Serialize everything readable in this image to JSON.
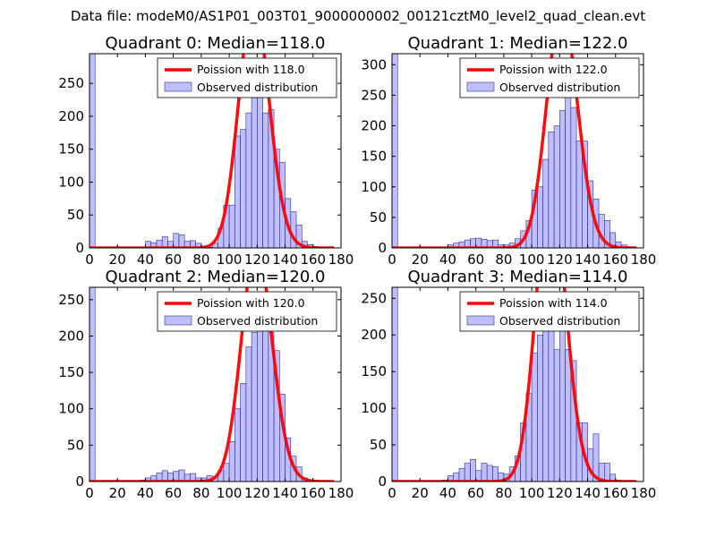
{
  "figure_title": "Data file: modeM0/AS1P01_003T01_9000000002_00121cztM0_level2_quad_clean.evt",
  "colors": {
    "poisson": "#ff0000",
    "bars": "#7f7fff",
    "bar_edge": "#2f2f8f"
  },
  "chart_data": [
    {
      "type": "bar+line",
      "title": "Quadrant 0: Median=118.0",
      "median": 118.0,
      "xlim": [
        0,
        180
      ],
      "ylim": [
        0,
        295
      ],
      "xticks": [
        0,
        20,
        40,
        60,
        80,
        100,
        120,
        140,
        160,
        180
      ],
      "yticks": [
        0,
        50,
        100,
        150,
        200,
        250
      ],
      "legend": {
        "position": "upper right",
        "entries": [
          "Poission with 118.0",
          "Observed distribution"
        ]
      },
      "bin_width": 4,
      "bins": [
        [
          0,
          295
        ],
        [
          40,
          10
        ],
        [
          44,
          8
        ],
        [
          48,
          12
        ],
        [
          52,
          17
        ],
        [
          56,
          10
        ],
        [
          60,
          22
        ],
        [
          64,
          20
        ],
        [
          68,
          10
        ],
        [
          72,
          11
        ],
        [
          76,
          7
        ],
        [
          80,
          3
        ],
        [
          84,
          1
        ],
        [
          88,
          7
        ],
        [
          92,
          30
        ],
        [
          96,
          65
        ],
        [
          100,
          65
        ],
        [
          104,
          170
        ],
        [
          108,
          180
        ],
        [
          112,
          205
        ],
        [
          116,
          245
        ],
        [
          120,
          250
        ],
        [
          124,
          205
        ],
        [
          128,
          210
        ],
        [
          132,
          150
        ],
        [
          136,
          130
        ],
        [
          140,
          75
        ],
        [
          144,
          55
        ],
        [
          148,
          35
        ],
        [
          152,
          10
        ],
        [
          156,
          5
        ],
        [
          160,
          2
        ]
      ]
    },
    {
      "type": "bar+line",
      "title": "Quadrant 1: Median=122.0",
      "median": 122.0,
      "xlim": [
        0,
        180
      ],
      "ylim": [
        0,
        318
      ],
      "xticks": [
        0,
        20,
        40,
        60,
        80,
        100,
        120,
        140,
        160,
        180
      ],
      "yticks": [
        0,
        50,
        100,
        150,
        200,
        250,
        300
      ],
      "legend": {
        "position": "upper right",
        "entries": [
          "Poission with 122.0",
          "Observed distribution"
        ]
      },
      "bin_width": 4,
      "bins": [
        [
          0,
          318
        ],
        [
          40,
          5
        ],
        [
          44,
          8
        ],
        [
          48,
          10
        ],
        [
          52,
          13
        ],
        [
          56,
          15
        ],
        [
          60,
          16
        ],
        [
          64,
          14
        ],
        [
          68,
          12
        ],
        [
          72,
          13
        ],
        [
          76,
          5
        ],
        [
          80,
          5
        ],
        [
          84,
          8
        ],
        [
          88,
          15
        ],
        [
          92,
          28
        ],
        [
          96,
          45
        ],
        [
          100,
          95
        ],
        [
          104,
          100
        ],
        [
          108,
          145
        ],
        [
          112,
          190
        ],
        [
          116,
          200
        ],
        [
          120,
          225
        ],
        [
          124,
          300
        ],
        [
          128,
          230
        ],
        [
          132,
          175
        ],
        [
          136,
          175
        ],
        [
          140,
          110
        ],
        [
          144,
          80
        ],
        [
          148,
          55
        ],
        [
          152,
          45
        ],
        [
          156,
          25
        ],
        [
          160,
          10
        ],
        [
          164,
          5
        ],
        [
          168,
          2
        ]
      ]
    },
    {
      "type": "bar+line",
      "title": "Quadrant 2: Median=120.0",
      "median": 120.0,
      "xlim": [
        0,
        180
      ],
      "ylim": [
        0,
        267
      ],
      "xticks": [
        0,
        20,
        40,
        60,
        80,
        100,
        120,
        140,
        160,
        180
      ],
      "yticks": [
        0,
        50,
        100,
        150,
        200,
        250
      ],
      "legend": {
        "position": "upper right",
        "entries": [
          "Poission with 120.0",
          "Observed distribution"
        ]
      },
      "bin_width": 4,
      "bins": [
        [
          0,
          267
        ],
        [
          36,
          2
        ],
        [
          40,
          5
        ],
        [
          44,
          8
        ],
        [
          48,
          12
        ],
        [
          52,
          15
        ],
        [
          56,
          12
        ],
        [
          60,
          14
        ],
        [
          64,
          16
        ],
        [
          68,
          10
        ],
        [
          72,
          11
        ],
        [
          76,
          5
        ],
        [
          80,
          5
        ],
        [
          84,
          8
        ],
        [
          88,
          6
        ],
        [
          92,
          15
        ],
        [
          96,
          25
        ],
        [
          100,
          55
        ],
        [
          104,
          100
        ],
        [
          108,
          135
        ],
        [
          112,
          185
        ],
        [
          116,
          205
        ],
        [
          120,
          260
        ],
        [
          124,
          210
        ],
        [
          128,
          205
        ],
        [
          132,
          180
        ],
        [
          136,
          120
        ],
        [
          140,
          60
        ],
        [
          144,
          35
        ],
        [
          148,
          20
        ],
        [
          152,
          5
        ],
        [
          156,
          2
        ]
      ]
    },
    {
      "type": "bar+line",
      "title": "Quadrant 3: Median=114.0",
      "median": 114.0,
      "xlim": [
        0,
        180
      ],
      "ylim": [
        0,
        265
      ],
      "xticks": [
        0,
        20,
        40,
        60,
        80,
        100,
        120,
        140,
        160,
        180
      ],
      "yticks": [
        0,
        50,
        100,
        150,
        200,
        250
      ],
      "legend": {
        "position": "upper right",
        "entries": [
          "Poission with 114.0",
          "Observed distribution"
        ]
      },
      "bin_width": 4,
      "bins": [
        [
          0,
          265
        ],
        [
          36,
          2
        ],
        [
          40,
          8
        ],
        [
          44,
          12
        ],
        [
          48,
          18
        ],
        [
          52,
          25
        ],
        [
          56,
          30
        ],
        [
          60,
          15
        ],
        [
          64,
          25
        ],
        [
          68,
          22
        ],
        [
          72,
          20
        ],
        [
          76,
          12
        ],
        [
          80,
          10
        ],
        [
          84,
          20
        ],
        [
          88,
          35
        ],
        [
          92,
          80
        ],
        [
          96,
          120
        ],
        [
          100,
          175
        ],
        [
          104,
          200
        ],
        [
          108,
          230
        ],
        [
          112,
          250
        ],
        [
          116,
          180
        ],
        [
          120,
          255
        ],
        [
          124,
          180
        ],
        [
          128,
          165
        ],
        [
          132,
          80
        ],
        [
          136,
          80
        ],
        [
          140,
          45
        ],
        [
          144,
          65
        ],
        [
          148,
          25
        ],
        [
          152,
          25
        ],
        [
          156,
          10
        ],
        [
          160,
          2
        ]
      ]
    }
  ]
}
